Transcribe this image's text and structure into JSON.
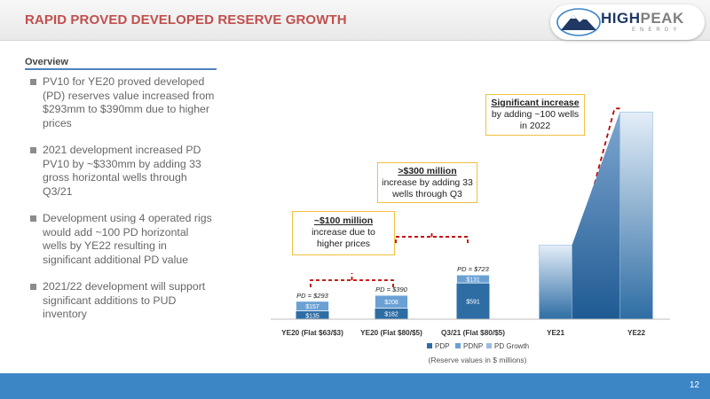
{
  "header": {
    "title": "RAPID PROVED DEVELOPED RESERVE GROWTH",
    "logo_text_bold": "HIGH",
    "logo_text_rest": "PEAK",
    "logo_subtext": "ENERGY"
  },
  "overview": {
    "title": "Overview",
    "bullets": [
      "PV10 for YE20 proved developed (PD) reserves value increased from $293mm to $390mm due to higher prices",
      "2021 development increased PD PV10 by ~$330mm by adding 33 gross horizontal wells through Q3/21",
      "Development using 4 operated rigs would add ~100 PD horizontal wells by YE22 resulting in significant additional PD value",
      "2021/22 development will support significant additions to PUD inventory"
    ]
  },
  "callouts": [
    {
      "head": "~$100 million",
      "body": "increase due to higher prices"
    },
    {
      "head": ">$300 million",
      "body": "increase by adding 33 wells through Q3"
    },
    {
      "head": "Significant increase",
      "body": "by adding ~100 wells in 2022"
    }
  ],
  "colors": {
    "pdp": "#2e6da4",
    "pdnp": "#6aa0d4",
    "growth": "#9bbde0",
    "title_red": "#c0504d",
    "bracket_red": "#c00000",
    "callout_border": "#f0c040",
    "footer_blue": "#3d86c6"
  },
  "chart_data": {
    "type": "bar",
    "stacked": true,
    "categories": [
      "YE20 (Flat $63/$3)",
      "YE20 (Flat $80/$5)",
      "Q3/21 (Flat $80/$5)",
      "YE21",
      "YE22"
    ],
    "series": [
      {
        "name": "PDP",
        "values": [
          135,
          182,
          591,
          null,
          null
        ],
        "labels": [
          "$135",
          "$182",
          "$591",
          "",
          ""
        ]
      },
      {
        "name": "PDNP",
        "values": [
          157,
          208,
          131,
          null,
          null
        ],
        "labels": [
          "$157",
          "$208",
          "$131",
          "",
          ""
        ]
      },
      {
        "name": "PD Growth",
        "values": [
          null,
          null,
          null,
          1210,
          3380
        ],
        "labels": [
          "",
          "",
          "",
          "",
          ""
        ]
      }
    ],
    "totals": [
      "PD = $293",
      "PD = $390",
      "PD = $723",
      "",
      ""
    ],
    "footnote": "(Reserve values in $ millions)",
    "legend_position": "bottom",
    "ylim": [
      0,
      3500
    ],
    "grid": false
  },
  "footer": {
    "page_number": "12"
  }
}
